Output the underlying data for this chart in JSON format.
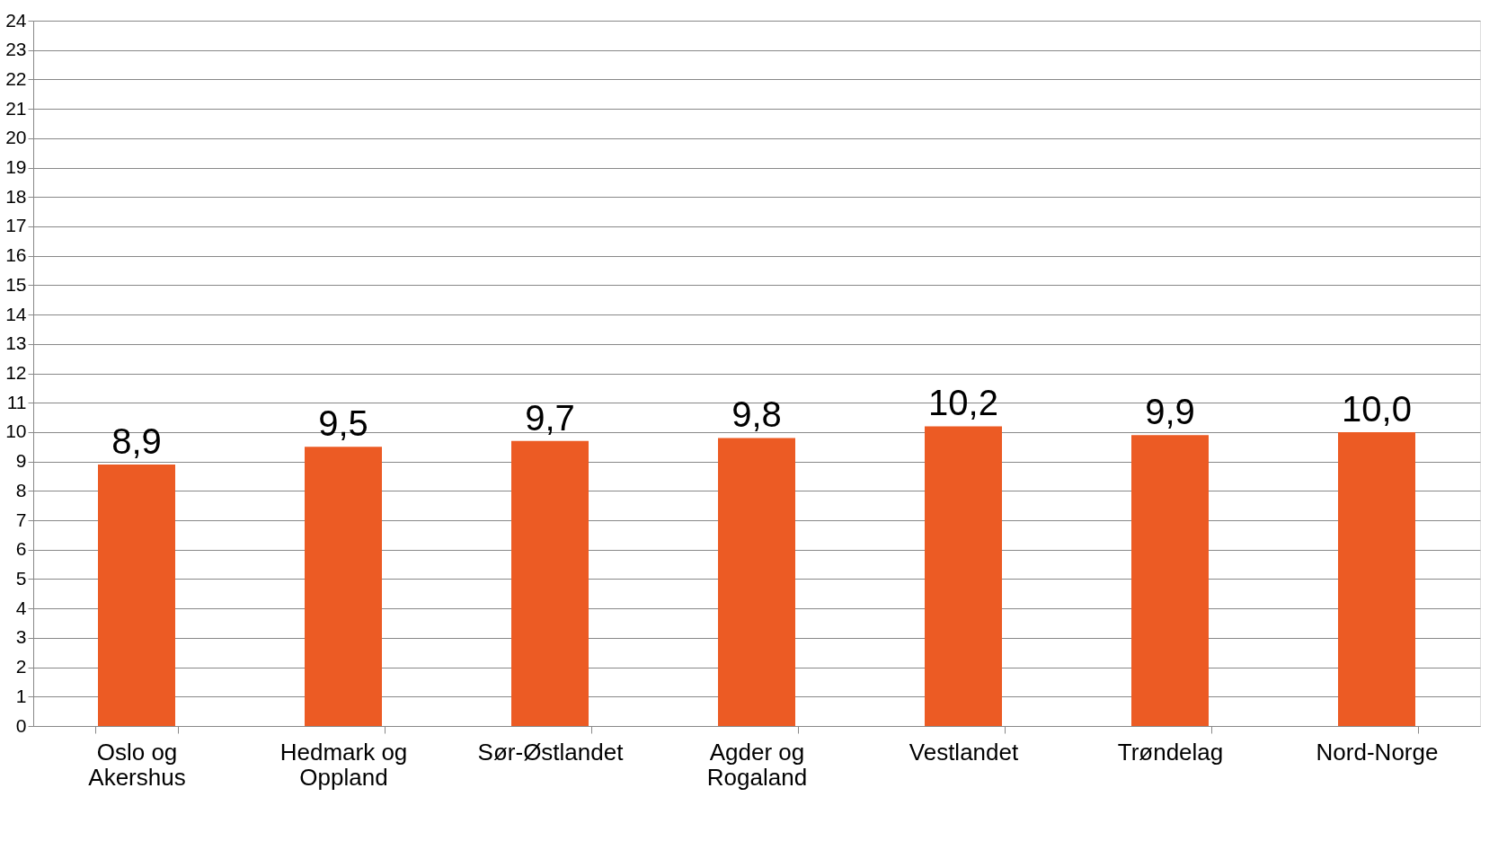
{
  "chart_data": {
    "type": "bar",
    "categories": [
      "Oslo og Akershus",
      "Hedmark og Oppland",
      "Sør-Østlandet",
      "Agder og Rogaland",
      "Vestlandet",
      "Trøndelag",
      "Nord-Norge"
    ],
    "values": [
      8.9,
      9.5,
      9.7,
      9.8,
      10.2,
      9.9,
      10.0
    ],
    "value_labels": [
      "8,9",
      "9,5",
      "9,7",
      "9,8",
      "10,2",
      "9,9",
      "10,0"
    ],
    "color": "#ec5b24",
    "ylim": [
      0,
      24
    ],
    "yticks": [
      0,
      1,
      2,
      3,
      4,
      5,
      6,
      7,
      8,
      9,
      10,
      11,
      12,
      13,
      14,
      15,
      16,
      17,
      18,
      19,
      20,
      21,
      22,
      23,
      24
    ],
    "grid": "y"
  }
}
